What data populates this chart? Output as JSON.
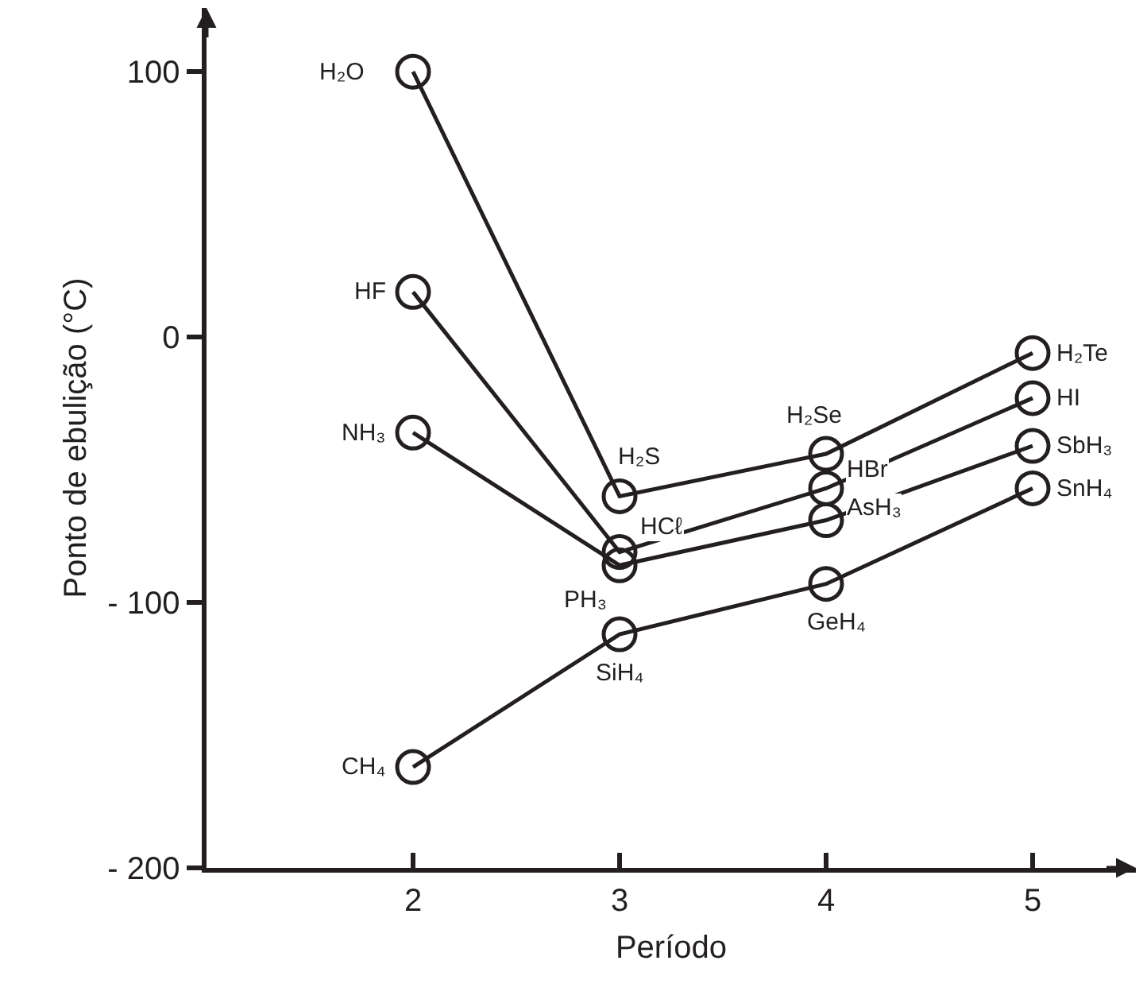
{
  "chart_data": {
    "type": "line",
    "xlabel": "Período",
    "ylabel": "Ponto de ebulição (°C)",
    "xlim": [
      1,
      5.5
    ],
    "xticks": [
      2,
      3,
      4,
      5
    ],
    "ylim": [
      -200,
      124
    ],
    "yticks": [
      {
        "value": -200,
        "label": "- 200"
      },
      {
        "value": -100,
        "label": "- 100"
      },
      0,
      100
    ],
    "grid": false,
    "marker": "circle",
    "line_style": "solid",
    "x": [
      2,
      3,
      4,
      5
    ],
    "series": [
      {
        "color": "#231f20",
        "values": [
          100,
          -60,
          -44,
          -6
        ]
      },
      {
        "color": "#231f20",
        "values": [
          17,
          -81,
          -57,
          -23
        ]
      },
      {
        "color": "#231f20",
        "values": [
          -36,
          -86,
          -69,
          -41
        ]
      },
      {
        "color": "#231f20",
        "values": [
          -162,
          -112,
          -93,
          -57
        ]
      }
    ],
    "annotations": [
      {
        "text": "H₂O",
        "x": 2,
        "y": 100
      },
      {
        "text": "H₂S",
        "x": 3,
        "y": -60
      },
      {
        "text": "H₂Se",
        "x": 4,
        "y": -44
      },
      {
        "text": "H₂Te",
        "x": 5,
        "y": -6
      },
      {
        "text": "HF",
        "x": 2,
        "y": 17
      },
      {
        "text": "HCℓ",
        "x": 3,
        "y": -81
      },
      {
        "text": "HBr",
        "x": 4,
        "y": -57
      },
      {
        "text": "HI",
        "x": 5,
        "y": -23
      },
      {
        "text": "NH₃",
        "x": 2,
        "y": -36
      },
      {
        "text": "PH₃",
        "x": 3,
        "y": -86
      },
      {
        "text": "AsH₃",
        "x": 4,
        "y": -69
      },
      {
        "text": "SbH₃",
        "x": 5,
        "y": -41
      },
      {
        "text": "CH₄",
        "x": 2,
        "y": -162
      },
      {
        "text": "SiH₄",
        "x": 3,
        "y": -112
      },
      {
        "text": "GeH₄",
        "x": 4,
        "y": -93
      },
      {
        "text": "SnH₄",
        "x": 5,
        "y": -57
      }
    ]
  }
}
